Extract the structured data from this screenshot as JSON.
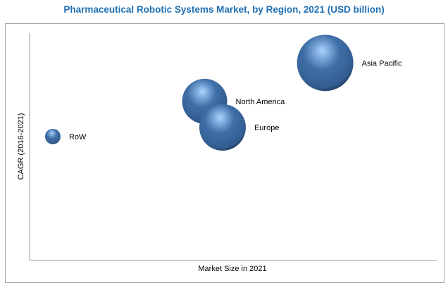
{
  "chart_data": {
    "type": "bubble",
    "title": "Pharmaceutical Robotic Systems Market, by Region, 2021 (USD billion)",
    "xlabel": "Market Size in 2021",
    "ylabel": "CAGR (2016-2021)",
    "xlim": [
      0,
      100
    ],
    "ylim": [
      0,
      100
    ],
    "grid": false,
    "ticks_shown": false,
    "series": [
      {
        "name": "RoW",
        "x": 5.7,
        "y": 54.5,
        "size": 11
      },
      {
        "name": "North America",
        "x": 43.0,
        "y": 70.0,
        "size": 32
      },
      {
        "name": "Europe",
        "x": 47.4,
        "y": 58.5,
        "size": 33
      },
      {
        "name": "Asia Pacific",
        "x": 72.6,
        "y": 86.9,
        "size": 40
      }
    ],
    "colors": {
      "bubble": "#3f6fa8",
      "highlight": "#a9d2ff",
      "shadow": "#1c3556",
      "title": "#1f6fb2"
    }
  }
}
